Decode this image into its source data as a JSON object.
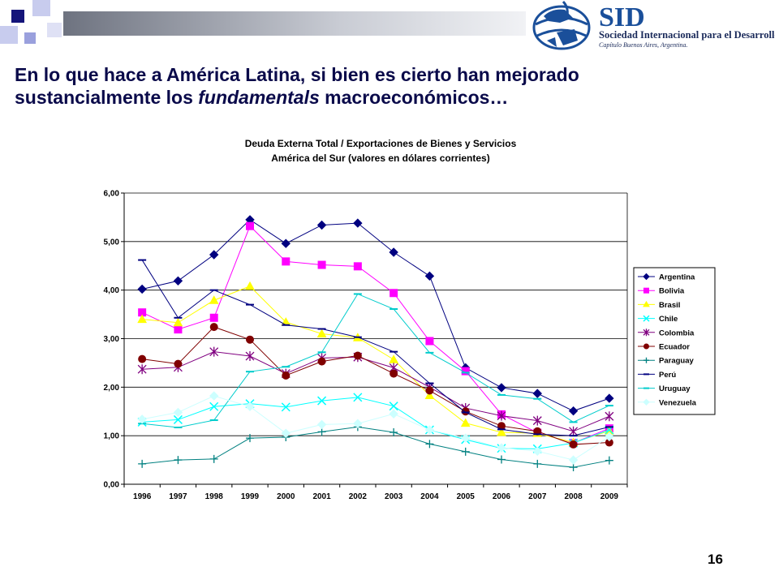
{
  "slide": {
    "title_part1": "En lo que hace a América Latina, si bien es cierto han mejorado",
    "title_part2": "sustancialmente los ",
    "title_em": "fundamentals",
    "title_part3": " macroeconómicos…",
    "page_number": "16"
  },
  "logo": {
    "acronym": "SID",
    "name": "Sociedad Internacional para el Desarrollo",
    "chapter": "Capítulo Buenos Aires, Argentina.",
    "color": "#1a4f9a"
  },
  "chart_data": {
    "type": "line",
    "title": "Deuda Externa Total / Exportaciones de Bienes y Servicios",
    "subtitle": "América del Sur (valores en dólares corrientes)",
    "xlabel": "",
    "ylabel": "",
    "categories": [
      "1996",
      "1997",
      "1998",
      "1999",
      "2000",
      "2001",
      "2002",
      "2003",
      "2004",
      "2005",
      "2006",
      "2007",
      "2008",
      "2009"
    ],
    "ylim": [
      0,
      6
    ],
    "yticks": [
      "0,00",
      "1,00",
      "2,00",
      "3,00",
      "4,00",
      "5,00",
      "6,00"
    ],
    "grid": true,
    "legend": "right",
    "series": [
      {
        "name": "Argentina",
        "color": "#000080",
        "marker": "diamond",
        "values": [
          4.02,
          4.19,
          4.73,
          5.45,
          4.96,
          5.34,
          5.38,
          4.78,
          4.29,
          2.4,
          1.99,
          1.87,
          1.51,
          1.77
        ]
      },
      {
        "name": "Bolivia",
        "color": "#ff00ff",
        "marker": "square",
        "values": [
          3.54,
          3.19,
          3.43,
          5.32,
          4.59,
          4.52,
          4.49,
          3.94,
          2.95,
          2.33,
          1.44,
          1.06,
          0.85,
          1.15
        ]
      },
      {
        "name": "Brasil",
        "color": "#ffff00",
        "marker": "triangle",
        "values": [
          3.4,
          3.33,
          3.79,
          4.08,
          3.34,
          3.1,
          3.02,
          2.57,
          1.83,
          1.26,
          1.07,
          1.05,
          0.86,
          1.1
        ]
      },
      {
        "name": "Chile",
        "color": "#00ffff",
        "marker": "x",
        "values": [
          1.28,
          1.33,
          1.6,
          1.66,
          1.59,
          1.72,
          1.79,
          1.61,
          1.12,
          0.92,
          0.74,
          0.73,
          0.85,
          1.12
        ]
      },
      {
        "name": "Colombia",
        "color": "#800080",
        "marker": "star",
        "values": [
          2.37,
          2.41,
          2.73,
          2.64,
          2.28,
          2.6,
          2.62,
          2.4,
          2.0,
          1.57,
          1.41,
          1.31,
          1.09,
          1.4
        ]
      },
      {
        "name": "Ecuador",
        "color": "#800000",
        "marker": "circle",
        "values": [
          2.58,
          2.48,
          3.24,
          2.98,
          2.24,
          2.53,
          2.65,
          2.28,
          1.93,
          1.5,
          1.2,
          1.09,
          0.82,
          0.86
        ]
      },
      {
        "name": "Paraguay",
        "color": "#008080",
        "marker": "plus",
        "values": [
          0.42,
          0.5,
          0.52,
          0.95,
          0.97,
          1.08,
          1.18,
          1.07,
          0.83,
          0.67,
          0.51,
          0.42,
          0.35,
          0.49
        ]
      },
      {
        "name": "Perú",
        "color": "#000080",
        "marker": "dash",
        "values": [
          4.62,
          3.43,
          4.0,
          3.7,
          3.28,
          3.2,
          3.03,
          2.73,
          2.08,
          1.48,
          1.13,
          1.03,
          1.0,
          1.18
        ]
      },
      {
        "name": "Uruguay",
        "color": "#00cccc",
        "marker": "dash",
        "values": [
          1.25,
          1.17,
          1.32,
          2.32,
          2.42,
          2.72,
          3.92,
          3.61,
          2.71,
          2.3,
          1.84,
          1.76,
          1.28,
          1.62
        ]
      },
      {
        "name": "Venezuela",
        "color": "#ccffff",
        "marker": "diamond",
        "values": [
          1.34,
          1.48,
          1.82,
          1.6,
          1.05,
          1.23,
          1.25,
          1.45,
          1.12,
          0.95,
          0.75,
          0.68,
          0.5,
          0.98
        ]
      }
    ]
  }
}
